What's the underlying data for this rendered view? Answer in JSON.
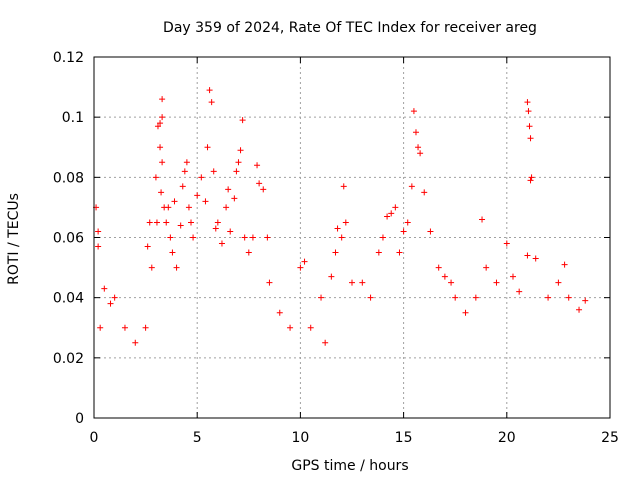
{
  "chart_data": {
    "type": "scatter",
    "title": "Day 359 of 2024, Rate Of TEC Index for receiver areg",
    "xlabel": "GPS time / hours",
    "ylabel": "ROTI / TECUs",
    "xlim": [
      0,
      25
    ],
    "ylim": [
      0,
      0.12
    ],
    "xticks": [
      0,
      5,
      10,
      15,
      20,
      25
    ],
    "yticks": [
      0,
      0.02,
      0.04,
      0.06,
      0.08,
      0.1,
      0.12
    ],
    "xtick_labels": [
      "0",
      "5",
      "10",
      "15",
      "20",
      "25"
    ],
    "ytick_labels": [
      "0",
      "0.02",
      "0.04",
      "0.06",
      "0.08",
      "0.1",
      "0.12"
    ],
    "grid": true,
    "marker": "+",
    "color": "#ff0000",
    "series": [
      {
        "points": [
          [
            0.1,
            0.07
          ],
          [
            0.2,
            0.062
          ],
          [
            0.2,
            0.057
          ],
          [
            0.3,
            0.03
          ],
          [
            0.5,
            0.043
          ],
          [
            0.8,
            0.038
          ],
          [
            1.0,
            0.04
          ],
          [
            1.5,
            0.03
          ],
          [
            2.0,
            0.025
          ],
          [
            2.5,
            0.03
          ],
          [
            2.6,
            0.057
          ],
          [
            2.7,
            0.065
          ],
          [
            2.8,
            0.05
          ],
          [
            3.0,
            0.08
          ],
          [
            3.05,
            0.065
          ],
          [
            3.1,
            0.097
          ],
          [
            3.2,
            0.098
          ],
          [
            3.3,
            0.106
          ],
          [
            3.3,
            0.1
          ],
          [
            3.2,
            0.09
          ],
          [
            3.3,
            0.085
          ],
          [
            3.25,
            0.075
          ],
          [
            3.4,
            0.07
          ],
          [
            3.5,
            0.065
          ],
          [
            3.6,
            0.07
          ],
          [
            3.7,
            0.06
          ],
          [
            3.8,
            0.055
          ],
          [
            3.9,
            0.072
          ],
          [
            4.0,
            0.05
          ],
          [
            4.2,
            0.064
          ],
          [
            4.3,
            0.077
          ],
          [
            4.4,
            0.082
          ],
          [
            4.5,
            0.085
          ],
          [
            4.6,
            0.07
          ],
          [
            4.7,
            0.065
          ],
          [
            4.8,
            0.06
          ],
          [
            5.0,
            0.074
          ],
          [
            5.2,
            0.08
          ],
          [
            5.4,
            0.072
          ],
          [
            5.5,
            0.09
          ],
          [
            5.6,
            0.109
          ],
          [
            5.7,
            0.105
          ],
          [
            5.8,
            0.082
          ],
          [
            5.9,
            0.063
          ],
          [
            6.0,
            0.065
          ],
          [
            6.2,
            0.058
          ],
          [
            6.4,
            0.07
          ],
          [
            6.5,
            0.076
          ],
          [
            6.6,
            0.062
          ],
          [
            6.8,
            0.073
          ],
          [
            6.9,
            0.082
          ],
          [
            7.0,
            0.085
          ],
          [
            7.1,
            0.089
          ],
          [
            7.2,
            0.099
          ],
          [
            7.3,
            0.06
          ],
          [
            7.5,
            0.055
          ],
          [
            7.7,
            0.06
          ],
          [
            7.9,
            0.084
          ],
          [
            8.0,
            0.078
          ],
          [
            8.2,
            0.076
          ],
          [
            8.4,
            0.06
          ],
          [
            8.5,
            0.045
          ],
          [
            9.0,
            0.035
          ],
          [
            9.5,
            0.03
          ],
          [
            10.0,
            0.05
          ],
          [
            10.2,
            0.052
          ],
          [
            10.5,
            0.03
          ],
          [
            11.0,
            0.04
          ],
          [
            11.2,
            0.025
          ],
          [
            11.5,
            0.047
          ],
          [
            11.7,
            0.055
          ],
          [
            11.8,
            0.063
          ],
          [
            12.0,
            0.06
          ],
          [
            12.1,
            0.077
          ],
          [
            12.2,
            0.065
          ],
          [
            12.5,
            0.045
          ],
          [
            13.0,
            0.045
          ],
          [
            13.4,
            0.04
          ],
          [
            13.8,
            0.055
          ],
          [
            14.0,
            0.06
          ],
          [
            14.2,
            0.067
          ],
          [
            14.4,
            0.068
          ],
          [
            14.6,
            0.07
          ],
          [
            14.8,
            0.055
          ],
          [
            15.0,
            0.062
          ],
          [
            15.2,
            0.065
          ],
          [
            15.4,
            0.077
          ],
          [
            15.5,
            0.102
          ],
          [
            15.6,
            0.095
          ],
          [
            15.7,
            0.09
          ],
          [
            15.8,
            0.088
          ],
          [
            16.0,
            0.075
          ],
          [
            16.3,
            0.062
          ],
          [
            16.7,
            0.05
          ],
          [
            17.0,
            0.047
          ],
          [
            17.3,
            0.045
          ],
          [
            17.5,
            0.04
          ],
          [
            18.0,
            0.035
          ],
          [
            18.5,
            0.04
          ],
          [
            18.8,
            0.066
          ],
          [
            19.0,
            0.05
          ],
          [
            19.5,
            0.045
          ],
          [
            20.0,
            0.058
          ],
          [
            20.3,
            0.047
          ],
          [
            20.6,
            0.042
          ],
          [
            21.0,
            0.105
          ],
          [
            21.05,
            0.102
          ],
          [
            21.1,
            0.097
          ],
          [
            21.15,
            0.093
          ],
          [
            21.2,
            0.08
          ],
          [
            21.15,
            0.079
          ],
          [
            21.0,
            0.054
          ],
          [
            21.4,
            0.053
          ],
          [
            22.0,
            0.04
          ],
          [
            22.5,
            0.045
          ],
          [
            22.8,
            0.051
          ],
          [
            23.0,
            0.04
          ],
          [
            23.5,
            0.036
          ],
          [
            23.8,
            0.039
          ]
        ]
      }
    ]
  }
}
